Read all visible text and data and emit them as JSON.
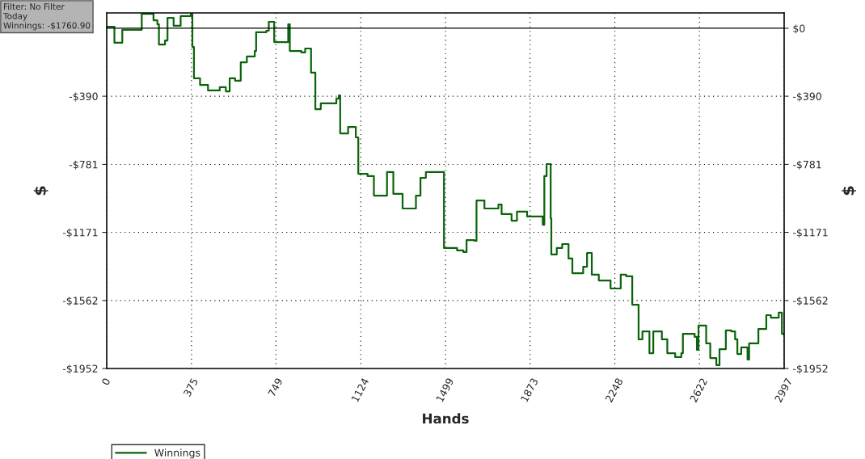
{
  "chart_data": {
    "type": "step",
    "xlabel": "Hands",
    "ylabel": "$",
    "y2label": "$",
    "annotations": [
      "Filter: No Filter",
      "Today",
      "Winnings: -$1760.90"
    ],
    "series": [
      {
        "name": "Winnings",
        "color": "#0b640b",
        "x": [
          0,
          34,
          69,
          138,
          155,
          207,
          224,
          231,
          258,
          269,
          296,
          327,
          372,
          379,
          386,
          413,
          448,
          500,
          527,
          544,
          568,
          593,
          620,
          655,
          661,
          706,
          717,
          741,
          792,
          803,
          810,
          861,
          878,
          904,
          923,
          947,
          1016,
          1027,
          1033,
          1068,
          1102,
          1113,
          1154,
          1182,
          1240,
          1268,
          1309,
          1368,
          1388,
          1412,
          1481,
          1492,
          1550,
          1578,
          1592,
          1626,
          1636,
          1671,
          1733,
          1747,
          1791,
          1815,
          1860,
          1929,
          1936,
          1946,
          1957,
          1964,
          1967,
          1991,
          2015,
          2043,
          2060,
          2108,
          2125,
          2146,
          2177,
          2229,
          2274,
          2298,
          2325,
          2353,
          2370,
          2401,
          2418,
          2456,
          2480,
          2515,
          2542,
          2549,
          2601,
          2611,
          2618,
          2652,
          2670,
          2697,
          2711,
          2739,
          2763,
          2780,
          2790,
          2807,
          2835,
          2842,
          2883,
          2918,
          2938,
          2973,
          2987,
          2997
        ],
        "values": [
          9,
          -83,
          -9,
          -9,
          83,
          46,
          23,
          -93,
          -70,
          60,
          14,
          70,
          80,
          -107,
          -287,
          -325,
          -357,
          -338,
          -362,
          -287,
          -301,
          -195,
          -162,
          -130,
          -23,
          -14,
          37,
          -79,
          -79,
          23,
          -130,
          -139,
          -116,
          -255,
          -464,
          -431,
          -403,
          -385,
          -603,
          -566,
          -626,
          -835,
          -848,
          -960,
          -825,
          -950,
          -1034,
          -960,
          -858,
          -825,
          -825,
          -1261,
          -1275,
          -1284,
          -1215,
          -1219,
          -988,
          -1034,
          -1011,
          -1066,
          -1104,
          -1052,
          -1080,
          -1127,
          -848,
          -779,
          -779,
          -1090,
          -1298,
          -1261,
          -1238,
          -1321,
          -1405,
          -1368,
          -1289,
          -1414,
          -1447,
          -1493,
          -1414,
          -1423,
          -1586,
          -1785,
          -1739,
          -1864,
          -1739,
          -1785,
          -1864,
          -1887,
          -1864,
          -1753,
          -1771,
          -1845,
          -1706,
          -1808,
          -1892,
          -1933,
          -1841,
          -1734,
          -1739,
          -1785,
          -1869,
          -1831,
          -1901,
          -1808,
          -1725,
          -1646,
          -1660,
          -1632,
          -1753,
          -1761
        ]
      }
    ],
    "xlim": [
      0,
      2997
    ],
    "xticks": [
      0,
      375,
      749,
      1124,
      1499,
      1873,
      2248,
      2622,
      2997
    ],
    "ylim": [
      -1952,
      88
    ],
    "yticks": [
      {
        "value": -390,
        "label": "-$390"
      },
      {
        "value": -781,
        "label": "-$781"
      },
      {
        "value": -1171,
        "label": "-$1171"
      },
      {
        "value": -1562,
        "label": "-$1562"
      },
      {
        "value": -1952,
        "label": "-$1952"
      }
    ],
    "y2lim": [
      -1952,
      88
    ],
    "y2ticks": [
      {
        "value": 0,
        "label": "$0"
      },
      {
        "value": -390,
        "label": "-$390"
      },
      {
        "value": -781,
        "label": "-$781"
      },
      {
        "value": -1171,
        "label": "-$1171"
      },
      {
        "value": -1562,
        "label": "-$1562"
      },
      {
        "value": -1952,
        "label": "-$1952"
      }
    ],
    "ref_lines": [
      {
        "axis": "y",
        "value": 0,
        "color": "#000000",
        "line_style": "solid"
      }
    ],
    "grid": true,
    "legend": "bottom left",
    "marker": "none",
    "line_style": "solid"
  }
}
